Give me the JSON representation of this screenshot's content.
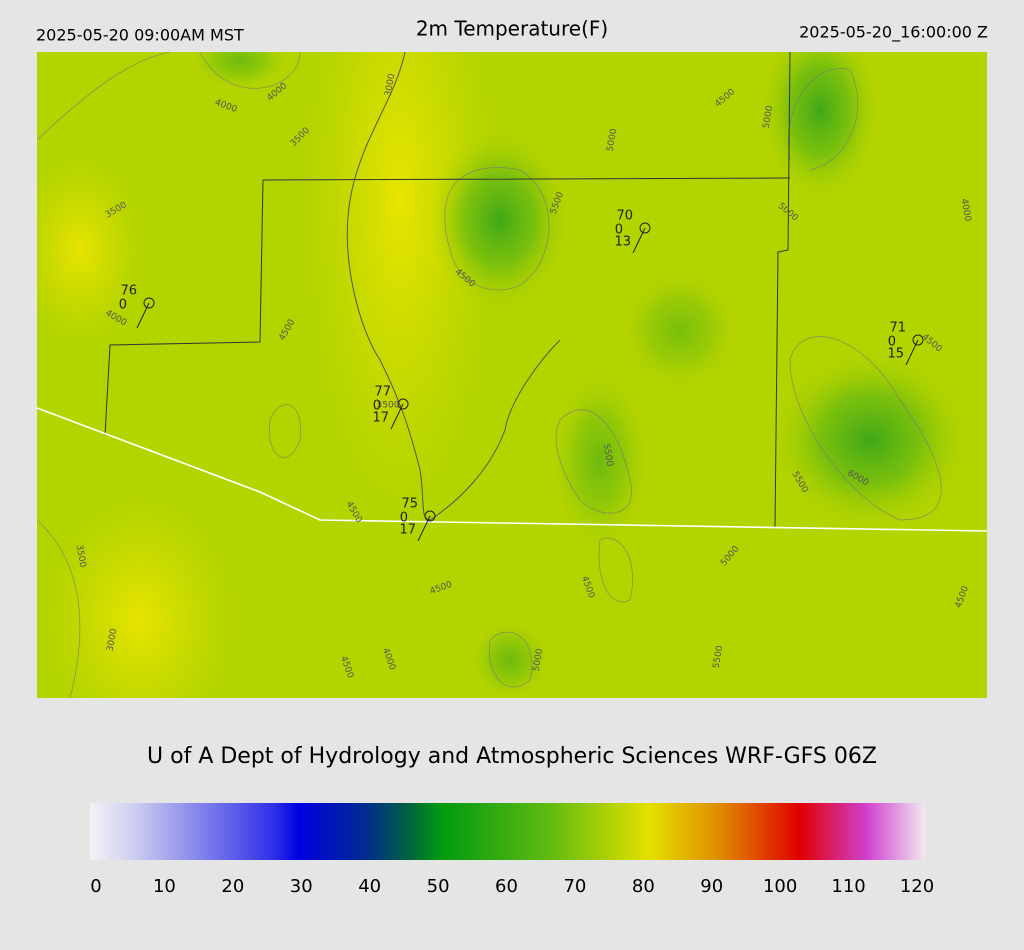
{
  "header": {
    "left": "2025-05-20 09:00AM MST",
    "title": "2m Temperature(F)",
    "right": "2025-05-20_16:00:00 Z"
  },
  "contour_labels": [
    "4000",
    "4000",
    "3000",
    "3500",
    "3500",
    "4000",
    "4500",
    "5000",
    "5500",
    "4500",
    "5000",
    "5000",
    "4000",
    "4500",
    "5500",
    "5500",
    "6000",
    "3500",
    "4500",
    "4500",
    "5000",
    "4500",
    "3000",
    "4500",
    "4000",
    "5000",
    "5500",
    "4500",
    "4500",
    "3500"
  ],
  "stations": [
    {
      "temp": "76",
      "dew": "0"
    },
    {
      "temp": "70",
      "dew": "0",
      "wind": "13"
    },
    {
      "temp": "71",
      "dew": "0",
      "wind": "15"
    },
    {
      "temp": "77",
      "dew": "0",
      "wind": "17"
    },
    {
      "temp": "75",
      "dew": "0",
      "wind": "17"
    }
  ],
  "credit": "U of A Dept of Hydrology and Atmospheric Sciences WRF-GFS 06Z",
  "colorbar": {
    "ticks": [
      0,
      10,
      20,
      30,
      40,
      50,
      60,
      70,
      80,
      90,
      100,
      110,
      120
    ]
  }
}
